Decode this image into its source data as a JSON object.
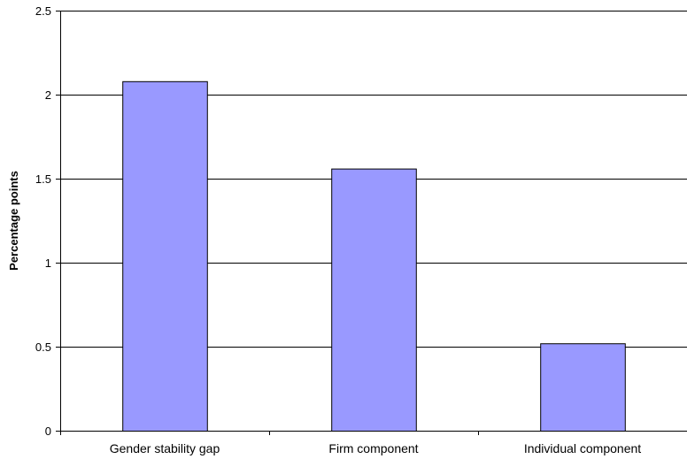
{
  "chart_data": {
    "type": "bar",
    "title": "",
    "xlabel": "",
    "ylabel": "Percentage points",
    "categories": [
      "Gender stability gap",
      "Firm component",
      "Individual component"
    ],
    "values": [
      2.08,
      1.56,
      0.52
    ],
    "ylim": [
      0,
      2.5
    ],
    "yticks": [
      "0",
      "0.5",
      "1",
      "1.5",
      "2",
      "2.5"
    ],
    "grid": true,
    "legend": "none",
    "bar_color": "#9999ff",
    "bar_stroke": "#000000"
  }
}
